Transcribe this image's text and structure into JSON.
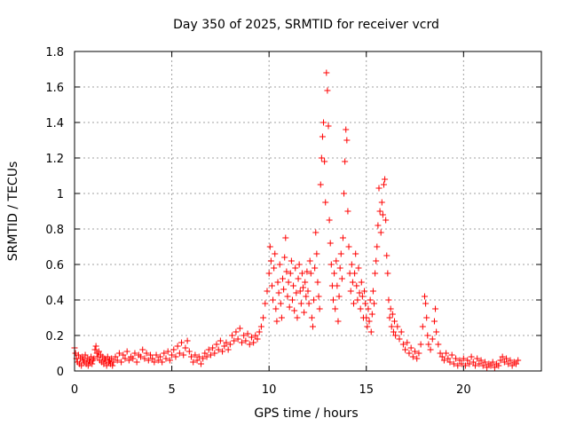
{
  "chart_data": {
    "type": "scatter",
    "title": "Day 350 of 2025, SRMTID for receiver vcrd",
    "xlabel": "GPS time / hours",
    "ylabel": "SRMTID / TECUs",
    "xlim": [
      0,
      24
    ],
    "ylim": [
      0,
      1.8
    ],
    "xticks": [
      0,
      5,
      10,
      15,
      20
    ],
    "xtick_labels": [
      "0",
      "5",
      "10",
      "15",
      "20"
    ],
    "yticks": [
      0,
      0.2,
      0.4,
      0.6,
      0.8,
      1,
      1.2,
      1.4,
      1.6,
      1.8
    ],
    "ytick_labels": [
      "0",
      "0.2",
      "0.4",
      "0.6",
      "0.8",
      "1",
      "1.2",
      "1.4",
      "1.6",
      "1.8"
    ],
    "grid": true,
    "marker": "+",
    "color": "#ff0000",
    "series": [
      {
        "name": "SRMTID",
        "points": [
          [
            0.0,
            0.13
          ],
          [
            0.05,
            0.1
          ],
          [
            0.1,
            0.07
          ],
          [
            0.15,
            0.05
          ],
          [
            0.2,
            0.09
          ],
          [
            0.25,
            0.04
          ],
          [
            0.3,
            0.07
          ],
          [
            0.35,
            0.03
          ],
          [
            0.4,
            0.08
          ],
          [
            0.45,
            0.06
          ],
          [
            0.5,
            0.05
          ],
          [
            0.55,
            0.09
          ],
          [
            0.6,
            0.04
          ],
          [
            0.65,
            0.07
          ],
          [
            0.7,
            0.03
          ],
          [
            0.75,
            0.06
          ],
          [
            0.8,
            0.05
          ],
          [
            0.85,
            0.08
          ],
          [
            0.9,
            0.04
          ],
          [
            0.95,
            0.06
          ],
          [
            1.0,
            0.07
          ],
          [
            1.05,
            0.12
          ],
          [
            1.1,
            0.14
          ],
          [
            1.15,
            0.1
          ],
          [
            1.2,
            0.08
          ],
          [
            1.25,
            0.11
          ],
          [
            1.3,
            0.06
          ],
          [
            1.35,
            0.09
          ],
          [
            1.4,
            0.05
          ],
          [
            1.45,
            0.08
          ],
          [
            1.5,
            0.04
          ],
          [
            1.55,
            0.07
          ],
          [
            1.6,
            0.06
          ],
          [
            1.65,
            0.03
          ],
          [
            1.7,
            0.08
          ],
          [
            1.75,
            0.05
          ],
          [
            1.8,
            0.06
          ],
          [
            1.85,
            0.04
          ],
          [
            1.9,
            0.07
          ],
          [
            1.95,
            0.03
          ],
          [
            2.0,
            0.05
          ],
          [
            2.1,
            0.08
          ],
          [
            2.2,
            0.06
          ],
          [
            2.3,
            0.1
          ],
          [
            2.4,
            0.05
          ],
          [
            2.5,
            0.09
          ],
          [
            2.6,
            0.07
          ],
          [
            2.7,
            0.11
          ],
          [
            2.8,
            0.06
          ],
          [
            2.9,
            0.08
          ],
          [
            3.0,
            0.07
          ],
          [
            3.1,
            0.1
          ],
          [
            3.2,
            0.05
          ],
          [
            3.3,
            0.09
          ],
          [
            3.4,
            0.08
          ],
          [
            3.5,
            0.12
          ],
          [
            3.6,
            0.07
          ],
          [
            3.7,
            0.1
          ],
          [
            3.8,
            0.06
          ],
          [
            3.9,
            0.09
          ],
          [
            4.0,
            0.07
          ],
          [
            4.1,
            0.05
          ],
          [
            4.2,
            0.09
          ],
          [
            4.3,
            0.06
          ],
          [
            4.4,
            0.08
          ],
          [
            4.5,
            0.05
          ],
          [
            4.6,
            0.1
          ],
          [
            4.7,
            0.07
          ],
          [
            4.8,
            0.11
          ],
          [
            4.9,
            0.06
          ],
          [
            5.0,
            0.09
          ],
          [
            5.1,
            0.12
          ],
          [
            5.2,
            0.08
          ],
          [
            5.3,
            0.14
          ],
          [
            5.4,
            0.1
          ],
          [
            5.5,
            0.16
          ],
          [
            5.6,
            0.09
          ],
          [
            5.7,
            0.13
          ],
          [
            5.8,
            0.17
          ],
          [
            5.9,
            0.11
          ],
          [
            6.0,
            0.08
          ],
          [
            6.1,
            0.05
          ],
          [
            6.2,
            0.09
          ],
          [
            6.3,
            0.06
          ],
          [
            6.4,
            0.08
          ],
          [
            6.5,
            0.04
          ],
          [
            6.6,
            0.07
          ],
          [
            6.7,
            0.1
          ],
          [
            6.8,
            0.08
          ],
          [
            6.9,
            0.12
          ],
          [
            7.0,
            0.09
          ],
          [
            7.1,
            0.13
          ],
          [
            7.2,
            0.1
          ],
          [
            7.3,
            0.15
          ],
          [
            7.4,
            0.12
          ],
          [
            7.5,
            0.17
          ],
          [
            7.6,
            0.11
          ],
          [
            7.7,
            0.14
          ],
          [
            7.8,
            0.16
          ],
          [
            7.9,
            0.12
          ],
          [
            8.0,
            0.15
          ],
          [
            8.1,
            0.2
          ],
          [
            8.2,
            0.17
          ],
          [
            8.3,
            0.22
          ],
          [
            8.4,
            0.18
          ],
          [
            8.5,
            0.24
          ],
          [
            8.6,
            0.16
          ],
          [
            8.7,
            0.2
          ],
          [
            8.8,
            0.17
          ],
          [
            8.9,
            0.21
          ],
          [
            9.0,
            0.15
          ],
          [
            9.1,
            0.19
          ],
          [
            9.2,
            0.16
          ],
          [
            9.3,
            0.2
          ],
          [
            9.4,
            0.18
          ],
          [
            9.5,
            0.22
          ],
          [
            9.6,
            0.25
          ],
          [
            9.7,
            0.3
          ],
          [
            9.8,
            0.38
          ],
          [
            9.9,
            0.45
          ],
          [
            10.0,
            0.55
          ],
          [
            10.05,
            0.7
          ],
          [
            10.1,
            0.62
          ],
          [
            10.15,
            0.48
          ],
          [
            10.2,
            0.4
          ],
          [
            10.25,
            0.58
          ],
          [
            10.3,
            0.66
          ],
          [
            10.35,
            0.35
          ],
          [
            10.4,
            0.28
          ],
          [
            10.45,
            0.5
          ],
          [
            10.5,
            0.44
          ],
          [
            10.55,
            0.6
          ],
          [
            10.6,
            0.38
          ],
          [
            10.65,
            0.3
          ],
          [
            10.7,
            0.52
          ],
          [
            10.75,
            0.46
          ],
          [
            10.8,
            0.64
          ],
          [
            10.85,
            0.75
          ],
          [
            10.9,
            0.56
          ],
          [
            10.95,
            0.42
          ],
          [
            11.0,
            0.5
          ],
          [
            11.05,
            0.36
          ],
          [
            11.1,
            0.55
          ],
          [
            11.15,
            0.62
          ],
          [
            11.2,
            0.4
          ],
          [
            11.25,
            0.48
          ],
          [
            11.3,
            0.34
          ],
          [
            11.35,
            0.58
          ],
          [
            11.4,
            0.44
          ],
          [
            11.45,
            0.3
          ],
          [
            11.5,
            0.52
          ],
          [
            11.55,
            0.6
          ],
          [
            11.6,
            0.45
          ],
          [
            11.65,
            0.38
          ],
          [
            11.7,
            0.55
          ],
          [
            11.75,
            0.47
          ],
          [
            11.8,
            0.33
          ],
          [
            11.85,
            0.5
          ],
          [
            11.9,
            0.42
          ],
          [
            11.95,
            0.56
          ],
          [
            12.0,
            0.45
          ],
          [
            12.05,
            0.38
          ],
          [
            12.1,
            0.62
          ],
          [
            12.15,
            0.55
          ],
          [
            12.2,
            0.3
          ],
          [
            12.25,
            0.25
          ],
          [
            12.3,
            0.4
          ],
          [
            12.35,
            0.58
          ],
          [
            12.4,
            0.78
          ],
          [
            12.45,
            0.66
          ],
          [
            12.5,
            0.5
          ],
          [
            12.55,
            0.42
          ],
          [
            12.6,
            0.35
          ],
          [
            12.65,
            1.05
          ],
          [
            12.7,
            1.2
          ],
          [
            12.75,
            1.32
          ],
          [
            12.8,
            1.4
          ],
          [
            12.85,
            1.18
          ],
          [
            12.9,
            0.95
          ],
          [
            12.95,
            1.68
          ],
          [
            13.0,
            1.58
          ],
          [
            13.05,
            1.38
          ],
          [
            13.1,
            0.85
          ],
          [
            13.15,
            0.72
          ],
          [
            13.2,
            0.6
          ],
          [
            13.25,
            0.48
          ],
          [
            13.3,
            0.4
          ],
          [
            13.35,
            0.55
          ],
          [
            13.4,
            0.35
          ],
          [
            13.45,
            0.62
          ],
          [
            13.5,
            0.48
          ],
          [
            13.55,
            0.28
          ],
          [
            13.6,
            0.42
          ],
          [
            13.65,
            0.58
          ],
          [
            13.7,
            0.66
          ],
          [
            13.75,
            0.52
          ],
          [
            13.8,
            0.75
          ],
          [
            13.85,
            1.0
          ],
          [
            13.9,
            1.18
          ],
          [
            13.95,
            1.36
          ],
          [
            14.0,
            1.3
          ],
          [
            14.05,
            0.9
          ],
          [
            14.1,
            0.7
          ],
          [
            14.15,
            0.55
          ],
          [
            14.2,
            0.45
          ],
          [
            14.25,
            0.6
          ],
          [
            14.3,
            0.5
          ],
          [
            14.35,
            0.38
          ],
          [
            14.4,
            0.55
          ],
          [
            14.45,
            0.66
          ],
          [
            14.5,
            0.48
          ],
          [
            14.55,
            0.4
          ],
          [
            14.6,
            0.58
          ],
          [
            14.65,
            0.44
          ],
          [
            14.7,
            0.35
          ],
          [
            14.75,
            0.5
          ],
          [
            14.8,
            0.42
          ],
          [
            14.85,
            0.3
          ],
          [
            14.9,
            0.45
          ],
          [
            14.95,
            0.38
          ],
          [
            15.0,
            0.3
          ],
          [
            15.05,
            0.25
          ],
          [
            15.1,
            0.35
          ],
          [
            15.15,
            0.28
          ],
          [
            15.2,
            0.4
          ],
          [
            15.25,
            0.22
          ],
          [
            15.3,
            0.32
          ],
          [
            15.35,
            0.45
          ],
          [
            15.4,
            0.38
          ],
          [
            15.45,
            0.55
          ],
          [
            15.5,
            0.62
          ],
          [
            15.55,
            0.7
          ],
          [
            15.6,
            0.82
          ],
          [
            15.65,
            1.03
          ],
          [
            15.7,
            0.9
          ],
          [
            15.75,
            0.78
          ],
          [
            15.8,
            0.95
          ],
          [
            15.85,
            0.88
          ],
          [
            15.9,
            1.05
          ],
          [
            15.95,
            1.08
          ],
          [
            16.0,
            0.85
          ],
          [
            16.05,
            0.65
          ],
          [
            16.1,
            0.55
          ],
          [
            16.15,
            0.4
          ],
          [
            16.2,
            0.3
          ],
          [
            16.25,
            0.35
          ],
          [
            16.3,
            0.25
          ],
          [
            16.35,
            0.32
          ],
          [
            16.4,
            0.22
          ],
          [
            16.45,
            0.28
          ],
          [
            16.5,
            0.2
          ],
          [
            16.6,
            0.25
          ],
          [
            16.7,
            0.18
          ],
          [
            16.8,
            0.22
          ],
          [
            16.9,
            0.15
          ],
          [
            17.0,
            0.12
          ],
          [
            17.1,
            0.16
          ],
          [
            17.2,
            0.1
          ],
          [
            17.3,
            0.13
          ],
          [
            17.4,
            0.08
          ],
          [
            17.5,
            0.11
          ],
          [
            17.6,
            0.07
          ],
          [
            17.7,
            0.1
          ],
          [
            17.8,
            0.15
          ],
          [
            17.9,
            0.25
          ],
          [
            18.0,
            0.42
          ],
          [
            18.05,
            0.38
          ],
          [
            18.1,
            0.3
          ],
          [
            18.15,
            0.2
          ],
          [
            18.2,
            0.15
          ],
          [
            18.3,
            0.12
          ],
          [
            18.4,
            0.18
          ],
          [
            18.5,
            0.28
          ],
          [
            18.55,
            0.35
          ],
          [
            18.6,
            0.22
          ],
          [
            18.7,
            0.15
          ],
          [
            18.8,
            0.1
          ],
          [
            18.9,
            0.08
          ],
          [
            19.0,
            0.06
          ],
          [
            19.1,
            0.1
          ],
          [
            19.2,
            0.07
          ],
          [
            19.3,
            0.05
          ],
          [
            19.4,
            0.09
          ],
          [
            19.5,
            0.04
          ],
          [
            19.6,
            0.07
          ],
          [
            19.7,
            0.03
          ],
          [
            19.8,
            0.06
          ],
          [
            19.9,
            0.04
          ],
          [
            20.0,
            0.07
          ],
          [
            20.1,
            0.03
          ],
          [
            20.2,
            0.06
          ],
          [
            20.3,
            0.04
          ],
          [
            20.4,
            0.08
          ],
          [
            20.5,
            0.05
          ],
          [
            20.6,
            0.03
          ],
          [
            20.7,
            0.07
          ],
          [
            20.8,
            0.04
          ],
          [
            20.9,
            0.06
          ],
          [
            21.0,
            0.03
          ],
          [
            21.1,
            0.05
          ],
          [
            21.2,
            0.02
          ],
          [
            21.3,
            0.04
          ],
          [
            21.4,
            0.03
          ],
          [
            21.5,
            0.05
          ],
          [
            21.6,
            0.02
          ],
          [
            21.7,
            0.04
          ],
          [
            21.8,
            0.03
          ],
          [
            21.9,
            0.06
          ],
          [
            22.0,
            0.08
          ],
          [
            22.1,
            0.05
          ],
          [
            22.2,
            0.07
          ],
          [
            22.3,
            0.04
          ],
          [
            22.4,
            0.06
          ],
          [
            22.5,
            0.03
          ],
          [
            22.6,
            0.05
          ],
          [
            22.7,
            0.04
          ],
          [
            22.8,
            0.06
          ]
        ]
      }
    ]
  }
}
